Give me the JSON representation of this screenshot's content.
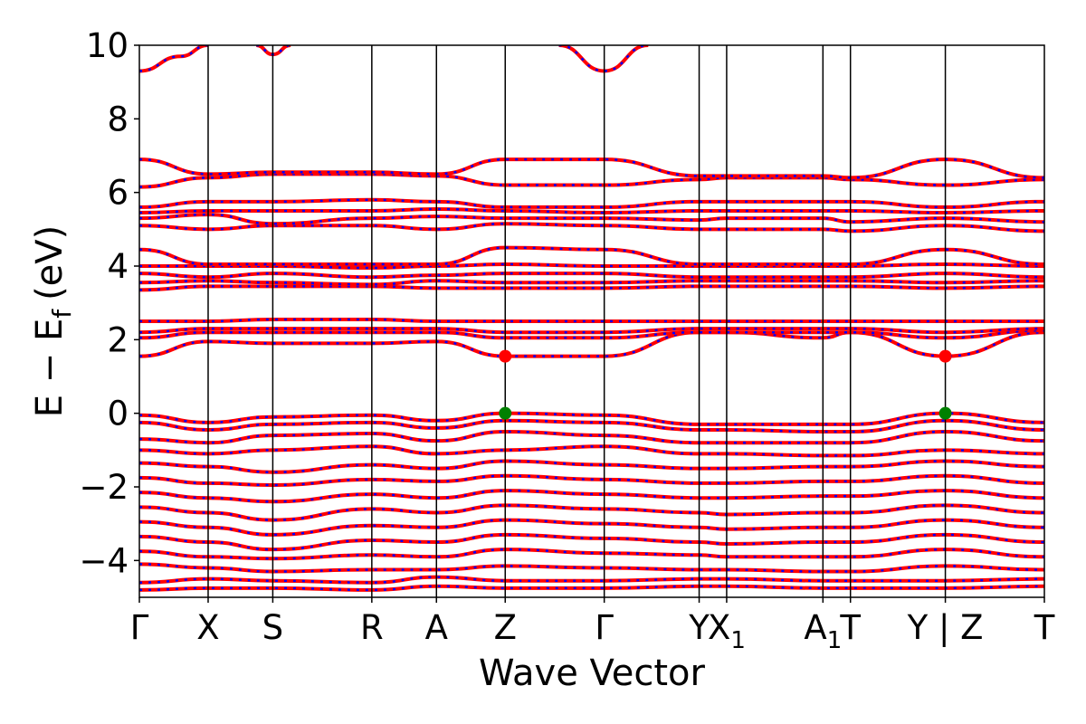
{
  "chart_data": {
    "type": "line",
    "xlabel": "Wave Vector",
    "ylabel_main": "E − E",
    "ylabel_sub": "f",
    "ylabel_unit": "(eV)",
    "ylim": [
      -5,
      10
    ],
    "yticks": [
      -4,
      -2,
      0,
      2,
      4,
      6,
      8,
      10
    ],
    "ytick_labels": [
      "−4",
      "−2",
      "0",
      "2",
      "4",
      "6",
      "8",
      "10"
    ],
    "kpoints": [
      {
        "label": "Γ",
        "x": 0.0
      },
      {
        "label": "X",
        "x": 0.5
      },
      {
        "label": "S",
        "x": 0.97
      },
      {
        "label": "R",
        "x": 1.69
      },
      {
        "label": "A",
        "x": 2.16
      },
      {
        "label": "Z",
        "x": 2.66
      },
      {
        "label": "Γ",
        "x": 3.38
      },
      {
        "label": "Y",
        "x": 4.07
      },
      {
        "label": "X",
        "sub": "1",
        "x": 4.27
      },
      {
        "label": "A",
        "sub": "1",
        "x": 4.97
      },
      {
        "label": "T",
        "x": 5.17
      },
      {
        "label": "Y | Z",
        "x": 5.86
      },
      {
        "label": "T",
        "x": 6.58
      }
    ],
    "xlim": [
      0,
      6.58
    ],
    "series_style": {
      "band_color": "#ff0000",
      "dash_color": "#0000ff"
    },
    "markers": [
      {
        "kind": "cbm",
        "x": 2.66,
        "y": 1.55,
        "color": "#ff0000"
      },
      {
        "kind": "vbm",
        "x": 2.66,
        "y": 0.0,
        "color": "#008000"
      },
      {
        "kind": "cbm",
        "x": 5.86,
        "y": 1.55,
        "color": "#ff0000"
      },
      {
        "kind": "vbm",
        "x": 5.86,
        "y": 0.0,
        "color": "#008000"
      }
    ],
    "bands": [
      {
        "x": [
          0,
          0.5,
          0.97,
          1.69,
          2.16,
          2.66,
          3.38,
          4.07,
          4.27,
          4.97,
          5.17,
          5.86,
          6.58
        ],
        "y": [
          -0.05,
          -0.25,
          -0.1,
          -0.05,
          -0.2,
          0.0,
          -0.05,
          -0.3,
          -0.3,
          -0.3,
          -0.3,
          0.0,
          -0.25
        ]
      },
      {
        "x": [
          0,
          0.5,
          0.97,
          1.69,
          2.16,
          2.66,
          3.38,
          4.07,
          4.27,
          4.97,
          5.17,
          5.86,
          6.58
        ],
        "y": [
          -0.25,
          -0.45,
          -0.3,
          -0.25,
          -0.4,
          -0.2,
          -0.25,
          -0.45,
          -0.45,
          -0.5,
          -0.5,
          -0.2,
          -0.45
        ]
      },
      {
        "x": [
          0,
          0.5,
          0.97,
          1.69,
          2.16,
          2.66,
          3.38,
          4.07,
          4.27,
          4.97,
          5.17,
          5.86,
          6.58
        ],
        "y": [
          -0.7,
          -0.8,
          -0.6,
          -0.55,
          -0.75,
          -0.5,
          -0.6,
          -0.8,
          -0.8,
          -0.8,
          -0.8,
          -0.5,
          -0.75
        ]
      },
      {
        "x": [
          0,
          0.5,
          0.97,
          1.69,
          2.16,
          2.66,
          3.38,
          4.07,
          4.27,
          4.97,
          5.17,
          5.86,
          6.58
        ],
        "y": [
          -1.0,
          -1.1,
          -1.0,
          -0.9,
          -1.1,
          -1.0,
          -0.9,
          -1.1,
          -1.1,
          -1.15,
          -1.15,
          -1.0,
          -1.1
        ]
      },
      {
        "x": [
          0,
          0.5,
          0.97,
          1.69,
          2.16,
          2.66,
          3.38,
          4.07,
          4.27,
          4.97,
          5.17,
          5.86,
          6.58
        ],
        "y": [
          -1.35,
          -1.45,
          -1.6,
          -1.4,
          -1.5,
          -1.3,
          -1.4,
          -1.5,
          -1.5,
          -1.45,
          -1.45,
          -1.3,
          -1.45
        ]
      },
      {
        "x": [
          0,
          0.5,
          0.97,
          1.69,
          2.16,
          2.66,
          3.38,
          4.07,
          4.27,
          4.97,
          5.17,
          5.86,
          6.58
        ],
        "y": [
          -1.75,
          -1.9,
          -1.95,
          -1.8,
          -1.85,
          -1.7,
          -1.8,
          -1.9,
          -1.9,
          -1.85,
          -1.85,
          -1.7,
          -1.9
        ]
      },
      {
        "x": [
          0,
          0.5,
          0.97,
          1.69,
          2.16,
          2.66,
          3.38,
          4.07,
          4.27,
          4.97,
          5.17,
          5.86,
          6.58
        ],
        "y": [
          -2.15,
          -2.3,
          -2.4,
          -2.2,
          -2.3,
          -2.1,
          -2.2,
          -2.3,
          -2.3,
          -2.25,
          -2.25,
          -2.1,
          -2.3
        ]
      },
      {
        "x": [
          0,
          0.5,
          0.97,
          1.69,
          2.16,
          2.66,
          3.38,
          4.07,
          4.27,
          4.97,
          5.17,
          5.86,
          6.58
        ],
        "y": [
          -2.55,
          -2.7,
          -2.9,
          -2.6,
          -2.7,
          -2.5,
          -2.6,
          -2.7,
          -2.75,
          -2.7,
          -2.7,
          -2.5,
          -2.7
        ]
      },
      {
        "x": [
          0,
          0.5,
          0.97,
          1.69,
          2.16,
          2.66,
          3.38,
          4.07,
          4.27,
          4.97,
          5.17,
          5.86,
          6.58
        ],
        "y": [
          -2.95,
          -3.1,
          -3.3,
          -3.05,
          -3.1,
          -2.9,
          -3.0,
          -3.1,
          -3.15,
          -3.1,
          -3.1,
          -2.9,
          -3.1
        ]
      },
      {
        "x": [
          0,
          0.5,
          0.97,
          1.69,
          2.16,
          2.66,
          3.38,
          4.07,
          4.27,
          4.97,
          5.17,
          5.86,
          6.58
        ],
        "y": [
          -3.35,
          -3.5,
          -3.7,
          -3.45,
          -3.5,
          -3.3,
          -3.4,
          -3.5,
          -3.55,
          -3.5,
          -3.5,
          -3.3,
          -3.5
        ]
      },
      {
        "x": [
          0,
          0.5,
          0.97,
          1.69,
          2.16,
          2.66,
          3.38,
          4.07,
          4.27,
          4.97,
          5.17,
          5.86,
          6.58
        ],
        "y": [
          -3.75,
          -3.9,
          -3.95,
          -3.85,
          -3.9,
          -3.7,
          -3.8,
          -3.85,
          -3.9,
          -3.9,
          -3.9,
          -3.7,
          -3.9
        ]
      },
      {
        "x": [
          0,
          0.5,
          0.97,
          1.69,
          2.16,
          2.66,
          3.38,
          4.07,
          4.27,
          4.97,
          5.17,
          5.86,
          6.58
        ],
        "y": [
          -4.1,
          -4.2,
          -4.3,
          -4.25,
          -4.25,
          -4.15,
          -4.2,
          -4.25,
          -4.25,
          -4.3,
          -4.3,
          -4.15,
          -4.25
        ]
      },
      {
        "x": [
          0,
          0.5,
          0.97,
          1.69,
          2.16,
          2.66,
          3.38,
          4.07,
          4.27,
          4.97,
          5.17,
          5.86,
          6.58
        ],
        "y": [
          -4.6,
          -4.5,
          -4.55,
          -4.6,
          -4.45,
          -4.55,
          -4.55,
          -4.5,
          -4.5,
          -4.55,
          -4.55,
          -4.55,
          -4.5
        ]
      },
      {
        "x": [
          0,
          0.5,
          0.97,
          1.69,
          2.16,
          2.66,
          3.38,
          4.07,
          4.27,
          4.97,
          5.17,
          5.86,
          6.58
        ],
        "y": [
          -4.8,
          -4.75,
          -4.75,
          -4.8,
          -4.7,
          -4.75,
          -4.75,
          -4.7,
          -4.7,
          -4.75,
          -4.75,
          -4.75,
          -4.7
        ]
      },
      {
        "x": [
          0,
          0.5,
          0.97,
          1.69,
          2.16,
          2.66,
          3.38,
          4.07,
          4.27,
          4.97,
          5.17,
          5.86,
          6.58
        ],
        "y": [
          1.55,
          1.95,
          1.9,
          1.9,
          1.95,
          1.55,
          1.55,
          2.2,
          2.2,
          2.05,
          2.2,
          1.55,
          2.2
        ]
      },
      {
        "x": [
          0,
          0.5,
          0.97,
          1.69,
          2.16,
          2.66,
          3.38,
          4.07,
          4.27,
          4.97,
          5.17,
          5.86,
          6.58
        ],
        "y": [
          2.05,
          2.2,
          2.2,
          2.2,
          2.2,
          2.05,
          2.05,
          2.2,
          2.2,
          2.2,
          2.2,
          2.05,
          2.25
        ]
      },
      {
        "x": [
          0,
          0.5,
          0.97,
          1.69,
          2.16,
          2.66,
          3.38,
          4.07,
          4.27,
          4.97,
          5.17,
          5.86,
          6.58
        ],
        "y": [
          2.2,
          2.3,
          2.3,
          2.3,
          2.3,
          2.2,
          2.2,
          2.3,
          2.3,
          2.3,
          2.3,
          2.2,
          2.3
        ]
      },
      {
        "x": [
          0,
          0.5,
          0.97,
          1.69,
          2.16,
          2.66,
          3.38,
          4.07,
          4.27,
          4.97,
          5.17,
          5.86,
          6.58
        ],
        "y": [
          2.5,
          2.5,
          2.55,
          2.55,
          2.5,
          2.5,
          2.5,
          2.5,
          2.5,
          2.5,
          2.5,
          2.5,
          2.5
        ]
      },
      {
        "x": [
          0,
          0.5,
          0.97,
          1.69,
          2.16,
          2.66,
          3.38,
          4.07,
          4.27,
          4.97,
          5.17,
          5.86,
          6.58
        ],
        "y": [
          3.35,
          3.45,
          3.45,
          3.45,
          3.4,
          3.4,
          3.4,
          3.45,
          3.45,
          3.45,
          3.45,
          3.4,
          3.45
        ]
      },
      {
        "x": [
          0,
          0.5,
          0.97,
          1.69,
          2.16,
          2.66,
          3.38,
          4.07,
          4.27,
          4.97,
          5.17,
          5.86,
          6.58
        ],
        "y": [
          3.55,
          3.6,
          3.55,
          3.5,
          3.6,
          3.55,
          3.55,
          3.6,
          3.6,
          3.6,
          3.6,
          3.55,
          3.6
        ]
      },
      {
        "x": [
          0,
          0.5,
          0.97,
          1.69,
          2.16,
          2.66,
          3.38,
          4.07,
          4.27,
          4.97,
          5.17,
          5.86,
          6.58
        ],
        "y": [
          3.8,
          3.7,
          3.8,
          3.7,
          3.75,
          3.8,
          3.8,
          3.7,
          3.7,
          3.7,
          3.7,
          3.8,
          3.7
        ]
      },
      {
        "x": [
          0,
          0.5,
          0.97,
          1.69,
          2.16,
          2.66,
          3.38,
          4.07,
          4.27,
          4.97,
          5.17,
          5.86,
          6.58
        ],
        "y": [
          4.0,
          4.0,
          4.0,
          3.95,
          4.0,
          4.05,
          4.0,
          4.0,
          4.0,
          4.0,
          4.0,
          4.05,
          4.0
        ]
      },
      {
        "x": [
          0,
          0.5,
          0.97,
          1.69,
          2.16,
          2.66,
          3.38,
          4.07,
          4.27,
          4.97,
          5.17,
          5.86,
          6.58
        ],
        "y": [
          4.45,
          4.05,
          4.05,
          4.05,
          4.05,
          4.5,
          4.45,
          4.05,
          4.05,
          4.05,
          4.05,
          4.45,
          4.05
        ]
      },
      {
        "x": [
          0,
          0.5,
          0.97,
          1.69,
          2.16,
          2.66,
          3.38,
          4.07,
          4.27,
          4.97,
          5.17,
          5.86,
          6.58
        ],
        "y": [
          5.1,
          5.0,
          5.1,
          5.1,
          5.0,
          5.15,
          5.1,
          5.0,
          5.0,
          5.0,
          4.95,
          5.1,
          4.95
        ]
      },
      {
        "x": [
          0,
          0.5,
          0.97,
          1.69,
          2.16,
          2.66,
          3.38,
          4.07,
          4.27,
          4.97,
          5.17,
          5.86,
          6.58
        ],
        "y": [
          5.3,
          5.4,
          5.15,
          5.3,
          5.35,
          5.3,
          5.3,
          5.25,
          5.3,
          5.3,
          5.2,
          5.3,
          5.2
        ]
      },
      {
        "x": [
          0,
          0.5,
          0.97,
          1.69,
          2.16,
          2.66,
          3.38,
          4.07,
          4.27,
          4.97,
          5.17,
          5.86,
          6.58
        ],
        "y": [
          5.45,
          5.5,
          5.5,
          5.5,
          5.55,
          5.5,
          5.45,
          5.5,
          5.5,
          5.5,
          5.5,
          5.45,
          5.5
        ]
      },
      {
        "x": [
          0,
          0.5,
          0.97,
          1.69,
          2.16,
          2.66,
          3.38,
          4.07,
          4.27,
          4.97,
          5.17,
          5.86,
          6.58
        ],
        "y": [
          5.6,
          5.75,
          5.75,
          5.8,
          5.75,
          5.6,
          5.6,
          5.75,
          5.75,
          5.75,
          5.75,
          5.6,
          5.75
        ]
      },
      {
        "x": [
          0,
          0.5,
          0.97,
          1.69,
          2.16,
          2.66,
          3.38,
          4.07,
          4.27,
          4.97,
          5.17,
          5.86,
          6.58
        ],
        "y": [
          6.15,
          6.4,
          6.5,
          6.5,
          6.45,
          6.2,
          6.2,
          6.35,
          6.4,
          6.4,
          6.35,
          6.2,
          6.35
        ]
      },
      {
        "x": [
          0,
          0.5,
          0.97,
          1.69,
          2.16,
          2.66,
          3.38,
          4.07,
          4.27,
          4.97,
          5.17,
          5.86,
          6.58
        ],
        "y": [
          6.9,
          6.5,
          6.55,
          6.55,
          6.5,
          6.9,
          6.9,
          6.45,
          6.45,
          6.45,
          6.4,
          6.9,
          6.4
        ]
      },
      {
        "x": [
          0,
          0.3,
          0.5
        ],
        "y": [
          9.3,
          9.7,
          10.0
        ]
      },
      {
        "x": [
          0.85,
          0.97,
          1.1
        ],
        "y": [
          10.0,
          9.75,
          10.0
        ]
      },
      {
        "x": [
          3.05,
          3.38,
          3.7
        ],
        "y": [
          10.0,
          9.3,
          10.0
        ]
      }
    ]
  }
}
